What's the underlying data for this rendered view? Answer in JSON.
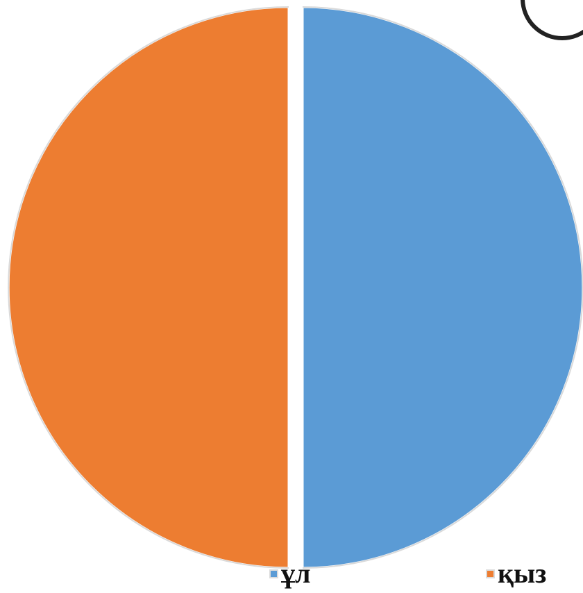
{
  "chart_data": {
    "type": "pie",
    "title": "",
    "slices": [
      {
        "label": "ұл",
        "value": 50,
        "color": "#5b9bd5"
      },
      {
        "label": "қыз",
        "value": 50,
        "color": "#ed7d31"
      }
    ],
    "start_angle_deg": 0,
    "direction": "clockwise",
    "exploded": true,
    "legend_position": "bottom"
  },
  "legend": {
    "items": [
      {
        "label": "ұл",
        "color": "#5b9bd5"
      },
      {
        "label": "қыз",
        "color": "#ed7d31"
      }
    ]
  }
}
